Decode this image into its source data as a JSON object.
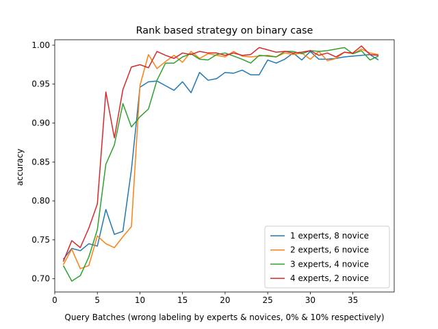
{
  "chart_data": {
    "type": "line",
    "title": "Rank based strategy on binary case",
    "xlabel": "Query Batches (wrong labeling by experts & novices, 0% & 10% respectively)",
    "ylabel": "accuracy",
    "xlim": [
      0,
      39.85
    ],
    "ylim": [
      0.683,
      1.007
    ],
    "xticks": [
      0,
      5,
      10,
      15,
      20,
      25,
      30,
      35
    ],
    "yticks": [
      0.7,
      0.75,
      0.8,
      0.85,
      0.9,
      0.95,
      1.0
    ],
    "ytick_labels": [
      "0.70",
      "0.75",
      "0.80",
      "0.85",
      "0.90",
      "0.95",
      "1.00"
    ],
    "grid": false,
    "legend_position": "lower right",
    "x": [
      1,
      2,
      3,
      4,
      5,
      6,
      7,
      8,
      9,
      10,
      11,
      12,
      13,
      14,
      15,
      16,
      17,
      18,
      19,
      20,
      21,
      22,
      23,
      24,
      25,
      26,
      27,
      28,
      29,
      30,
      31,
      32,
      33,
      34,
      35,
      36,
      37,
      38
    ],
    "series": [
      {
        "name": "1 experts, 8 novice",
        "color": "#1f77b4",
        "values": [
          0.725,
          0.739,
          0.736,
          0.745,
          0.742,
          0.789,
          0.757,
          0.761,
          0.84,
          0.946,
          0.953,
          0.954,
          0.948,
          0.942,
          0.953,
          0.939,
          0.965,
          0.955,
          0.957,
          0.965,
          0.964,
          0.968,
          0.962,
          0.962,
          0.981,
          0.977,
          0.982,
          0.99,
          0.981,
          0.992,
          0.982,
          0.982,
          0.983,
          0.985,
          0.986,
          0.987,
          0.988,
          0.981
        ]
      },
      {
        "name": "2 experts, 6 novice",
        "color": "#ff7f0e",
        "values": [
          0.718,
          0.738,
          0.713,
          0.717,
          0.755,
          0.745,
          0.74,
          0.754,
          0.767,
          0.948,
          0.988,
          0.97,
          0.979,
          0.987,
          0.978,
          0.992,
          0.983,
          0.989,
          0.987,
          0.985,
          0.992,
          0.986,
          0.985,
          0.986,
          0.987,
          0.985,
          0.99,
          0.988,
          0.99,
          0.982,
          0.992,
          0.98,
          0.983,
          0.991,
          0.989,
          0.995,
          0.99,
          0.988
        ]
      },
      {
        "name": "3 experts, 4 novice",
        "color": "#2ca02c",
        "values": [
          0.717,
          0.697,
          0.704,
          0.728,
          0.763,
          0.847,
          0.872,
          0.925,
          0.895,
          0.908,
          0.918,
          0.955,
          0.977,
          0.977,
          0.985,
          0.989,
          0.982,
          0.981,
          0.988,
          0.99,
          0.986,
          0.982,
          0.977,
          0.987,
          0.986,
          0.985,
          0.992,
          0.992,
          0.989,
          0.993,
          0.992,
          0.993,
          0.995,
          0.997,
          0.989,
          0.993,
          0.981,
          0.986
        ]
      },
      {
        "name": "4 experts, 2 novice",
        "color": "#d62728",
        "values": [
          0.722,
          0.749,
          0.74,
          0.765,
          0.796,
          0.94,
          0.881,
          0.943,
          0.972,
          0.975,
          0.971,
          0.992,
          0.987,
          0.983,
          0.99,
          0.988,
          0.992,
          0.99,
          0.99,
          0.987,
          0.99,
          0.987,
          0.988,
          0.997,
          0.994,
          0.991,
          0.992,
          0.99,
          0.991,
          0.993,
          0.987,
          0.99,
          0.985,
          0.991,
          0.99,
          0.999,
          0.988,
          0.987
        ]
      }
    ]
  }
}
